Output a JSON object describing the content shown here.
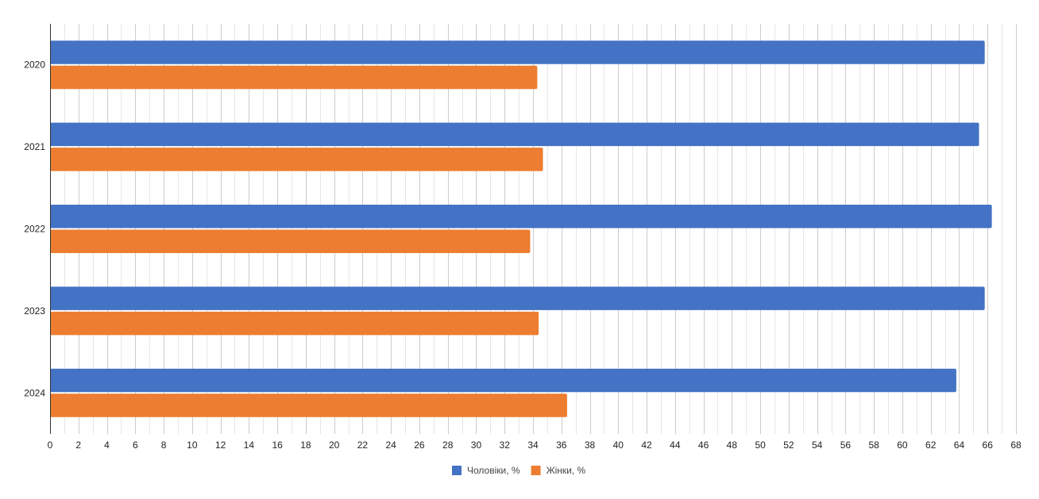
{
  "chart_data": {
    "type": "bar",
    "orientation": "horizontal",
    "categories": [
      "2020",
      "2021",
      "2022",
      "2023",
      "2024"
    ],
    "series": [
      {
        "name": "Чоловіки, %",
        "color": "#4472c4",
        "values": [
          65.8,
          65.4,
          66.3,
          65.8,
          63.8
        ]
      },
      {
        "name": "Жінки, %",
        "color": "#ed7d31",
        "values": [
          34.3,
          34.7,
          33.8,
          34.4,
          36.4
        ]
      }
    ],
    "x_ticks": [
      "0",
      "2",
      "4",
      "6",
      "8",
      "10",
      "12",
      "14",
      "16",
      "18",
      "20",
      "22",
      "24",
      "26",
      "28",
      "30",
      "32",
      "34",
      "36",
      "38",
      "40",
      "42",
      "44",
      "46",
      "48",
      "50",
      "52",
      "54",
      "56",
      "58",
      "60",
      "62",
      "64",
      "66",
      "68"
    ],
    "xlim": [
      0,
      68
    ],
    "grid": true,
    "minor_grid_step": 1,
    "legend_position": "bottom"
  }
}
